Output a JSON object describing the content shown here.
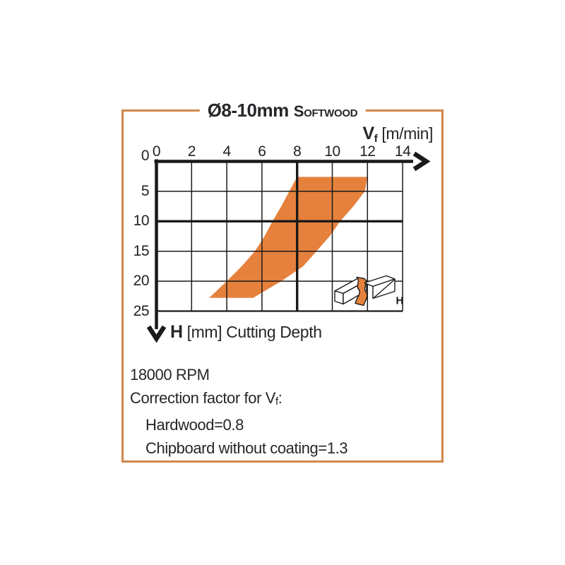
{
  "frame": {
    "border_color": "#d0884a"
  },
  "title": {
    "size_range": "Ø8-10mm",
    "material": "Softwood"
  },
  "x_axis": {
    "symbol": "V",
    "symbol_sub": "f",
    "unit": "[m/min]"
  },
  "y_axis": {
    "symbol": "H",
    "unit": "[mm] Cutting Depth"
  },
  "notes": {
    "rpm": "18000 RPM",
    "correction_prefix": "Correction factor for V",
    "correction_sub": "f",
    "correction_suffix": ":",
    "lines": [
      "Hardwood=0.8",
      "Chipboard without coating=1.3"
    ]
  },
  "icon": {
    "label": "H"
  },
  "chart_data": {
    "type": "area",
    "title": "Ø8-10mm Softwood: recommended feed rate vs cutting depth",
    "xlabel": "Vf [m/min]",
    "ylabel": "H [mm] Cutting Depth",
    "xlim": [
      0,
      14
    ],
    "ylim": [
      0,
      25
    ],
    "x_ticks": [
      0,
      2,
      4,
      6,
      8,
      10,
      12,
      14
    ],
    "y_ticks": [
      0,
      5,
      10,
      15,
      20,
      25
    ],
    "y_inverted": true,
    "grid": true,
    "bold_x_gridline": 8,
    "bold_y_gridline": 10,
    "band_color": "#e5813c",
    "band": {
      "left_boundary": [
        [
          8,
          2.6
        ],
        [
          7.55,
          5
        ],
        [
          7.1,
          7.5
        ],
        [
          6.6,
          10
        ],
        [
          6.15,
          12.5
        ],
        [
          5.6,
          15
        ],
        [
          4.85,
          17.5
        ],
        [
          4.0,
          20
        ],
        [
          3.0,
          22.8
        ]
      ],
      "right_boundary": [
        [
          12,
          2.6
        ],
        [
          11.85,
          5
        ],
        [
          11.2,
          7.5
        ],
        [
          10.45,
          10
        ],
        [
          9.85,
          12.5
        ],
        [
          9.1,
          15
        ],
        [
          8.35,
          17.5
        ],
        [
          7.1,
          20
        ],
        [
          5.5,
          22.8
        ]
      ]
    }
  }
}
